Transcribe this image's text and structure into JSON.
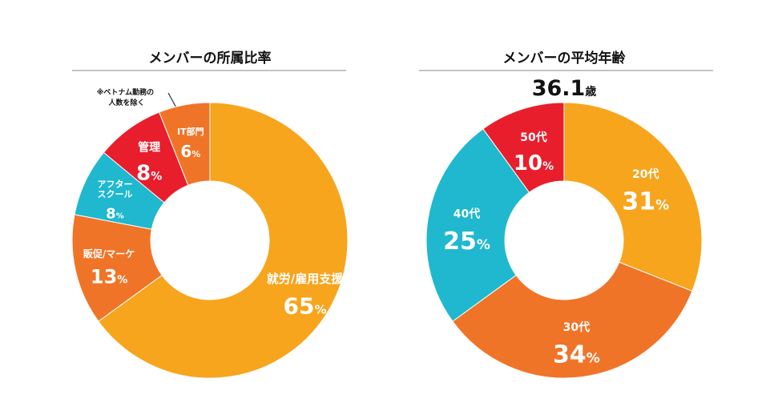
{
  "chart_data": [
    {
      "type": "pie",
      "title": "メンバーの所属比率",
      "unit": "%",
      "categories": [
        "就労/雇用支援",
        "販促/マーケ",
        "アフタースクール",
        "管理",
        "IT部門"
      ],
      "labels": [
        "就労/雇用支援",
        "販促/マーケ",
        "アフター\nスクール",
        "管理",
        "IT部門"
      ],
      "values": [
        65,
        13,
        8,
        8,
        6
      ],
      "colors": [
        "#F7A51D",
        "#F07428",
        "#1FB8CF",
        "#E81E2C",
        "#F07428"
      ],
      "annotation": "※ベトナム勤務の\n人数を除く"
    },
    {
      "type": "pie",
      "title": "メンバーの平均年齢",
      "unit": "%",
      "categories": [
        "20代",
        "30代",
        "40代",
        "50代"
      ],
      "labels": [
        "20代",
        "30代",
        "40代",
        "50代"
      ],
      "values": [
        31,
        34,
        25,
        10
      ],
      "colors": [
        "#F7A51D",
        "#F07428",
        "#1FB8CF",
        "#E81E2C"
      ],
      "average": {
        "value": "36.1",
        "unit": "歳"
      }
    }
  ]
}
